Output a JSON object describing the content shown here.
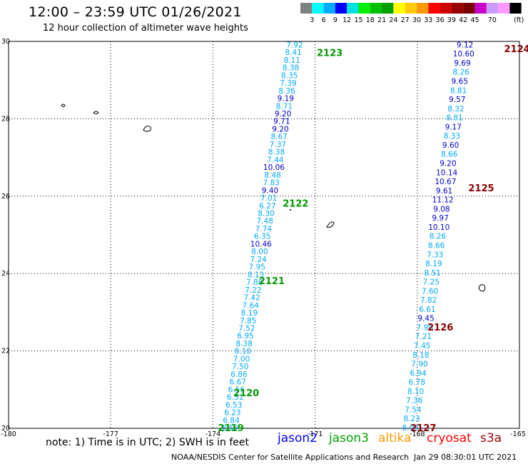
{
  "header": {
    "title": "12:00 – 23:59 UTC 01/26/2021",
    "subtitle": "12 hour collection of altimeter wave heights"
  },
  "legend": {
    "colors": [
      "#808080",
      "#00ffff",
      "#00aaff",
      "#0000ff",
      "#00e0e0",
      "#00ee00",
      "#00c000",
      "#00a000",
      "#ffff00",
      "#ffcc00",
      "#ff9900",
      "#ff0000",
      "#cc0000",
      "#990000",
      "#7a0000",
      "#cc00cc",
      "#cc99ff",
      "#ff99ff",
      "#000000"
    ],
    "labels": [
      "3",
      "6",
      "9",
      "12",
      "15",
      "18",
      "21",
      "24",
      "27",
      "30",
      "33",
      "36",
      "39",
      "42",
      "45",
      "70"
    ],
    "unit": "(ft)"
  },
  "chart_data": {
    "type": "map-tracks",
    "xlim": [
      -180,
      -165
    ],
    "ylim": [
      20,
      30
    ],
    "x_ticks": [
      "-180",
      "-177",
      "-174",
      "-171",
      "-168",
      "-165"
    ],
    "y_ticks": [
      "30",
      "28",
      "26",
      "24",
      "22",
      "20"
    ],
    "tracks": [
      {
        "id": "2119-2123",
        "lon_start": -173.5,
        "lat_start": 20.0,
        "lon_end": -171.6,
        "lat_end": 29.9,
        "values": [
          "6.55",
          "6.84",
          "6.23",
          "6.53",
          "6.51",
          "6.56",
          "6.67",
          "6.86",
          "7.50",
          "7.00",
          "8.10",
          "8.38",
          "6.95",
          "7.52",
          "7.85",
          "8.19",
          "7.64",
          "7.42",
          "7.22",
          "7.88",
          "8.13",
          "7.95",
          "7.24",
          "8.00",
          "10.46",
          "6.35",
          "7.74",
          "7.48",
          "8.30",
          "6.27",
          "7.01",
          "9.40",
          "7.83",
          "8.48",
          "10.06",
          "7.44",
          "8.38",
          "7.37",
          "8.67",
          "9.20",
          "9.71",
          "9.20",
          "8.71",
          "9.19",
          "8.36",
          "7.39",
          "8.35",
          "8.38",
          "8.11",
          "8.41",
          "7.92"
        ],
        "colors": [
          "c",
          "c",
          "c",
          "c",
          "c",
          "c",
          "c",
          "c",
          "c",
          "c",
          "c",
          "c",
          "c",
          "c",
          "c",
          "c",
          "c",
          "c",
          "c",
          "c",
          "c",
          "c",
          "c",
          "c",
          "b",
          "c",
          "c",
          "c",
          "c",
          "c",
          "c",
          "b",
          "c",
          "c",
          "b",
          "c",
          "c",
          "c",
          "c",
          "b",
          "b",
          "b",
          "c",
          "b",
          "c",
          "c",
          "c",
          "c",
          "c",
          "c",
          "c"
        ]
      },
      {
        "id": "2124-2127",
        "lon_start": -168.2,
        "lat_start": 20.0,
        "lon_end": -166.6,
        "lat_end": 29.9,
        "values": [
          "8.04",
          "8.23",
          "7.54",
          "7.36",
          "8.10",
          "6.78",
          "6.94",
          "7.90",
          "8.18",
          "7.45",
          "7.21",
          "7.98",
          "9.45",
          "6.61",
          "7.82",
          "7.60",
          "7.25",
          "8.51",
          "8.19",
          "7.33",
          "8.66",
          "8.26",
          "10.10",
          "9.97",
          "9.08",
          "11.12",
          "9.61",
          "10.67",
          "10.14",
          "9.20",
          "8.66",
          "9.60",
          "8.33",
          "9.17",
          "8.81",
          "8.32",
          "9.57",
          "8.81",
          "9.65",
          "8.26",
          "9.69",
          "10.60",
          "9.12"
        ],
        "colors": [
          "c",
          "c",
          "c",
          "c",
          "c",
          "c",
          "c",
          "c",
          "c",
          "c",
          "c",
          "c",
          "b",
          "c",
          "c",
          "c",
          "c",
          "c",
          "c",
          "c",
          "c",
          "c",
          "b",
          "b",
          "b",
          "b",
          "b",
          "b",
          "b",
          "b",
          "c",
          "b",
          "c",
          "b",
          "c",
          "c",
          "b",
          "c",
          "b",
          "c",
          "b",
          "b",
          "b"
        ]
      }
    ],
    "pass_labels": [
      {
        "text": "2119",
        "lon": -173.85,
        "lat": 20.0,
        "color": "green"
      },
      {
        "text": "2120",
        "lon": -173.4,
        "lat": 20.9,
        "color": "green"
      },
      {
        "text": "2121",
        "lon": -172.65,
        "lat": 23.8,
        "color": "green"
      },
      {
        "text": "2122",
        "lon": -171.95,
        "lat": 25.8,
        "color": "green"
      },
      {
        "text": "2123",
        "lon": -170.95,
        "lat": 29.7,
        "color": "green"
      },
      {
        "text": "2124",
        "lon": -165.45,
        "lat": 29.8,
        "color": "darkred"
      },
      {
        "text": "2125",
        "lon": -166.5,
        "lat": 26.2,
        "color": "darkred"
      },
      {
        "text": "2126",
        "lon": -167.7,
        "lat": 22.6,
        "color": "darkred"
      },
      {
        "text": "2127",
        "lon": -168.2,
        "lat": 20.0,
        "color": "darkred"
      }
    ]
  },
  "footer": {
    "note": "note: 1) Time is in UTC; 2) SWH is in feet",
    "satellites": [
      {
        "name": "jason2",
        "color": "#0000ff"
      },
      {
        "name": "jason3",
        "color": "#00a000"
      },
      {
        "name": "altika",
        "color": "#ff9900"
      },
      {
        "name": "cryosat",
        "color": "#ff0000"
      },
      {
        "name": "s3a",
        "color": "#990000"
      }
    ],
    "credit": "NOAA/NESDIS Center for Satellite Applications and Research",
    "generated": "Jan 29 08:30:01 UTC 2021"
  }
}
